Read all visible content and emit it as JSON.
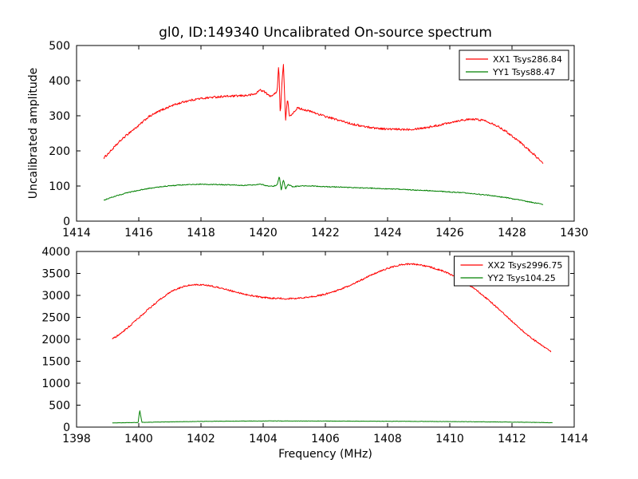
{
  "figure": {
    "background": "#ffffff",
    "axis_color": "#000000"
  },
  "chart_data": [
    {
      "type": "line",
      "title": "gl0, ID:149340 Uncalibrated On-source spectrum",
      "xlabel": "",
      "ylabel": "Uncalibrated amplitude",
      "xlim": [
        1414,
        1430
      ],
      "ylim": [
        0,
        500
      ],
      "xticks": [
        1414,
        1416,
        1418,
        1420,
        1422,
        1424,
        1426,
        1428,
        1430
      ],
      "yticks": [
        0,
        100,
        200,
        300,
        400,
        500
      ],
      "grid": false,
      "legend_position": "upper right",
      "series": [
        {
          "name": "XX1 Tsys286.84",
          "color": "#ff0000",
          "noise": 3,
          "points": [
            [
              1414.88,
              180
            ],
            [
              1415.1,
              200
            ],
            [
              1415.4,
              228
            ],
            [
              1415.7,
              252
            ],
            [
              1416.0,
              272
            ],
            [
              1416.3,
              296
            ],
            [
              1416.7,
              315
            ],
            [
              1417.1,
              330
            ],
            [
              1417.5,
              341
            ],
            [
              1417.9,
              348
            ],
            [
              1418.3,
              352
            ],
            [
              1418.7,
              355
            ],
            [
              1419.1,
              356
            ],
            [
              1419.5,
              358
            ],
            [
              1419.75,
              362
            ],
            [
              1419.9,
              374
            ],
            [
              1420.05,
              368
            ],
            [
              1420.2,
              356
            ],
            [
              1420.35,
              360
            ],
            [
              1420.45,
              372
            ],
            [
              1420.5,
              448
            ],
            [
              1420.55,
              300
            ],
            [
              1420.6,
              386
            ],
            [
              1420.65,
              452
            ],
            [
              1420.72,
              285
            ],
            [
              1420.78,
              348
            ],
            [
              1420.85,
              296
            ],
            [
              1420.95,
              308
            ],
            [
              1421.1,
              322
            ],
            [
              1421.3,
              318
            ],
            [
              1421.6,
              310
            ],
            [
              1422.0,
              298
            ],
            [
              1422.4,
              288
            ],
            [
              1422.8,
              278
            ],
            [
              1423.2,
              270
            ],
            [
              1423.6,
              265
            ],
            [
              1424.0,
              262
            ],
            [
              1424.4,
              261
            ],
            [
              1424.8,
              262
            ],
            [
              1425.2,
              266
            ],
            [
              1425.6,
              272
            ],
            [
              1426.0,
              281
            ],
            [
              1426.4,
              288
            ],
            [
              1426.8,
              290
            ],
            [
              1427.1,
              287
            ],
            [
              1427.4,
              277
            ],
            [
              1427.7,
              262
            ],
            [
              1428.0,
              243
            ],
            [
              1428.3,
              222
            ],
            [
              1428.6,
              198
            ],
            [
              1428.85,
              178
            ],
            [
              1429.0,
              163
            ]
          ]
        },
        {
          "name": "YY1 Tsys88.47",
          "color": "#008000",
          "noise": 1.3,
          "points": [
            [
              1414.88,
              60
            ],
            [
              1415.2,
              70
            ],
            [
              1415.6,
              80
            ],
            [
              1416.0,
              88
            ],
            [
              1416.4,
              94
            ],
            [
              1416.8,
              99
            ],
            [
              1417.2,
              102
            ],
            [
              1417.6,
              104
            ],
            [
              1418.0,
              105
            ],
            [
              1418.5,
              104
            ],
            [
              1419.0,
              103
            ],
            [
              1419.4,
              102
            ],
            [
              1419.7,
              103
            ],
            [
              1419.9,
              106
            ],
            [
              1420.1,
              101
            ],
            [
              1420.3,
              99
            ],
            [
              1420.45,
              103
            ],
            [
              1420.52,
              128
            ],
            [
              1420.58,
              88
            ],
            [
              1420.65,
              118
            ],
            [
              1420.72,
              92
            ],
            [
              1420.8,
              104
            ],
            [
              1420.95,
              98
            ],
            [
              1421.2,
              100
            ],
            [
              1421.6,
              100
            ],
            [
              1422.0,
              98
            ],
            [
              1422.5,
              97
            ],
            [
              1423.0,
              95
            ],
            [
              1423.5,
              94
            ],
            [
              1424.0,
              92
            ],
            [
              1424.5,
              90
            ],
            [
              1425.0,
              88
            ],
            [
              1425.5,
              86
            ],
            [
              1426.0,
              83
            ],
            [
              1426.5,
              80
            ],
            [
              1427.0,
              76
            ],
            [
              1427.4,
              72
            ],
            [
              1427.8,
              67
            ],
            [
              1428.2,
              61
            ],
            [
              1428.6,
              54
            ],
            [
              1428.85,
              50
            ],
            [
              1429.0,
              47
            ]
          ]
        }
      ]
    },
    {
      "type": "line",
      "title": "",
      "xlabel": "Frequency (MHz)",
      "ylabel": "",
      "xlim": [
        1398,
        1414
      ],
      "ylim": [
        0,
        4000
      ],
      "xticks": [
        1398,
        1400,
        1402,
        1404,
        1406,
        1408,
        1410,
        1412,
        1414
      ],
      "yticks": [
        0,
        500,
        1000,
        1500,
        2000,
        2500,
        3000,
        3500,
        4000
      ],
      "grid": false,
      "legend_position": "upper right",
      "series": [
        {
          "name": "XX2 Tsys2996.75",
          "color": "#ff0000",
          "noise": 18,
          "points": [
            [
              1399.15,
              2000
            ],
            [
              1399.5,
              2180
            ],
            [
              1399.9,
              2420
            ],
            [
              1400.3,
              2680
            ],
            [
              1400.7,
              2920
            ],
            [
              1401.1,
              3110
            ],
            [
              1401.5,
              3220
            ],
            [
              1401.9,
              3250
            ],
            [
              1402.3,
              3220
            ],
            [
              1402.7,
              3160
            ],
            [
              1403.1,
              3080
            ],
            [
              1403.5,
              3010
            ],
            [
              1403.9,
              2960
            ],
            [
              1404.3,
              2935
            ],
            [
              1404.7,
              2925
            ],
            [
              1405.1,
              2935
            ],
            [
              1405.5,
              2960
            ],
            [
              1405.9,
              3010
            ],
            [
              1406.3,
              3090
            ],
            [
              1406.7,
              3200
            ],
            [
              1407.1,
              3330
            ],
            [
              1407.5,
              3470
            ],
            [
              1407.9,
              3590
            ],
            [
              1408.2,
              3660
            ],
            [
              1408.5,
              3710
            ],
            [
              1408.8,
              3715
            ],
            [
              1409.1,
              3690
            ],
            [
              1409.4,
              3640
            ],
            [
              1409.8,
              3550
            ],
            [
              1410.2,
              3420
            ],
            [
              1410.6,
              3250
            ],
            [
              1411.0,
              3040
            ],
            [
              1411.4,
              2800
            ],
            [
              1411.8,
              2540
            ],
            [
              1412.2,
              2280
            ],
            [
              1412.6,
              2040
            ],
            [
              1413.0,
              1840
            ],
            [
              1413.25,
              1720
            ]
          ]
        },
        {
          "name": "YY2 Tsys104.25",
          "color": "#008000",
          "noise": 4,
          "points": [
            [
              1399.15,
              95
            ],
            [
              1399.5,
              100
            ],
            [
              1399.8,
              103
            ],
            [
              1399.98,
              105
            ],
            [
              1400.03,
              390
            ],
            [
              1400.1,
              108
            ],
            [
              1400.5,
              113
            ],
            [
              1401.0,
              120
            ],
            [
              1401.5,
              125
            ],
            [
              1402.0,
              130
            ],
            [
              1402.5,
              133
            ],
            [
              1403.0,
              136
            ],
            [
              1403.5,
              138
            ],
            [
              1404.0,
              140
            ],
            [
              1404.5,
              140
            ],
            [
              1405.0,
              140
            ],
            [
              1405.5,
              139
            ],
            [
              1406.0,
              138
            ],
            [
              1406.5,
              136
            ],
            [
              1407.0,
              135
            ],
            [
              1407.5,
              134
            ],
            [
              1408.0,
              133
            ],
            [
              1408.5,
              132
            ],
            [
              1409.0,
              130
            ],
            [
              1409.5,
              128
            ],
            [
              1410.0,
              126
            ],
            [
              1410.5,
              124
            ],
            [
              1411.0,
              121
            ],
            [
              1411.5,
              118
            ],
            [
              1412.0,
              114
            ],
            [
              1412.5,
              110
            ],
            [
              1413.0,
              104
            ],
            [
              1413.3,
              98
            ]
          ]
        }
      ]
    }
  ]
}
